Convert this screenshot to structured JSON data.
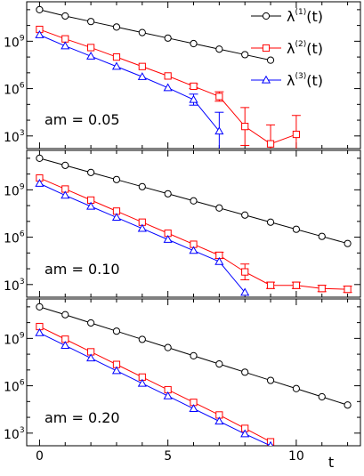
{
  "colors": {
    "series1": "#000000",
    "series2": "#ff0000",
    "series3": "#0000ff"
  },
  "legend": {
    "placement": "top-right",
    "entries": [
      {
        "symbol": "circle",
        "base": "λ",
        "sup": "(1)",
        "tail": "(t)",
        "color": "#000000"
      },
      {
        "symbol": "square",
        "base": "λ",
        "sup": "(2)",
        "tail": "(t)",
        "color": "#ff0000"
      },
      {
        "symbol": "triangle",
        "base": "λ",
        "sup": "(3)",
        "tail": "(t)",
        "color": "#0000ff"
      }
    ]
  },
  "chart_data": [
    {
      "type": "line",
      "label": "am = 0.05",
      "xlim": [
        -0.5,
        12.5
      ],
      "ylim_log10": [
        2.2,
        11.5
      ],
      "yscale": "log",
      "ytick_labels": [
        {
          "base": "10",
          "exp": "3",
          "log": 3
        },
        {
          "base": "10",
          "exp": "6",
          "log": 6
        },
        {
          "base": "10",
          "exp": "9",
          "log": 9
        }
      ],
      "series": [
        {
          "marker": "circle",
          "color": "#000000",
          "x": [
            0,
            1,
            2,
            3,
            4,
            5,
            6,
            7,
            8,
            9
          ],
          "log10y": [
            11.0,
            10.6,
            10.25,
            9.9,
            9.55,
            9.2,
            8.85,
            8.5,
            8.15,
            7.8
          ]
        },
        {
          "marker": "square",
          "color": "#ff0000",
          "x": [
            0,
            1,
            2,
            3,
            4,
            5,
            6,
            7,
            8,
            9,
            10
          ],
          "log10y": [
            9.75,
            9.15,
            8.6,
            8.0,
            7.4,
            6.8,
            6.15,
            5.5,
            3.6,
            2.5,
            3.1
          ],
          "err": [
            0,
            0,
            0,
            0,
            0,
            0,
            0.15,
            0.3,
            1.2,
            1.2,
            1.2
          ]
        },
        {
          "marker": "triangle",
          "color": "#0000ff",
          "x": [
            0,
            1,
            2,
            3,
            4,
            5,
            6,
            7
          ],
          "log10y": [
            9.4,
            8.7,
            8.05,
            7.4,
            6.75,
            6.05,
            5.3,
            3.3
          ],
          "err": [
            0,
            0,
            0,
            0,
            0,
            0,
            0.35,
            1.2
          ]
        }
      ]
    },
    {
      "type": "line",
      "label": "am = 0.10",
      "xlim": [
        -0.5,
        12.5
      ],
      "ylim_log10": [
        2.2,
        11.5
      ],
      "yscale": "log",
      "ytick_labels": [
        {
          "base": "10",
          "exp": "3",
          "log": 3
        },
        {
          "base": "10",
          "exp": "6",
          "log": 6
        },
        {
          "base": "10",
          "exp": "9",
          "log": 9
        }
      ],
      "series": [
        {
          "marker": "circle",
          "color": "#000000",
          "x": [
            0,
            1,
            2,
            3,
            4,
            5,
            6,
            7,
            8,
            9,
            10,
            11,
            12
          ],
          "log10y": [
            11.0,
            10.55,
            10.1,
            9.65,
            9.2,
            8.75,
            8.3,
            7.85,
            7.4,
            6.95,
            6.5,
            6.05,
            5.6
          ]
        },
        {
          "marker": "square",
          "color": "#ff0000",
          "x": [
            0,
            1,
            2,
            3,
            4,
            5,
            6,
            7,
            8,
            9,
            10,
            11,
            12
          ],
          "log10y": [
            9.75,
            9.05,
            8.35,
            7.65,
            6.95,
            6.25,
            5.55,
            4.85,
            3.8,
            2.95,
            2.95,
            2.75,
            2.7
          ],
          "err": [
            0,
            0,
            0,
            0,
            0,
            0,
            0,
            0.2,
            0.5,
            0.2,
            0.2,
            0.2,
            0.2
          ]
        },
        {
          "marker": "triangle",
          "color": "#0000ff",
          "x": [
            0,
            1,
            2,
            3,
            4,
            5,
            6,
            7,
            8
          ],
          "log10y": [
            9.4,
            8.65,
            7.95,
            7.25,
            6.55,
            5.85,
            5.15,
            4.45,
            2.5
          ]
        }
      ]
    },
    {
      "type": "line",
      "label": "am = 0.20",
      "xlim": [
        -0.5,
        12.5
      ],
      "ylim_log10": [
        2.2,
        11.5
      ],
      "yscale": "log",
      "ytick_labels": [
        {
          "base": "10",
          "exp": "3",
          "log": 3
        },
        {
          "base": "10",
          "exp": "6",
          "log": 6
        },
        {
          "base": "10",
          "exp": "9",
          "log": 9
        }
      ],
      "xtick_labels": [
        "0",
        "5",
        "10"
      ],
      "xticks": [
        0,
        5,
        10
      ],
      "xlabel": "t",
      "series": [
        {
          "marker": "circle",
          "color": "#000000",
          "x": [
            0,
            1,
            2,
            3,
            4,
            5,
            6,
            7,
            8,
            9,
            10,
            11,
            12
          ],
          "log10y": [
            11.0,
            10.5,
            9.98,
            9.46,
            8.94,
            8.42,
            7.9,
            7.38,
            6.86,
            6.34,
            5.82,
            5.3,
            4.78
          ]
        },
        {
          "marker": "square",
          "color": "#ff0000",
          "x": [
            0,
            1,
            2,
            3,
            4,
            5,
            6,
            7,
            8,
            9
          ],
          "log10y": [
            9.75,
            8.95,
            8.15,
            7.35,
            6.55,
            5.75,
            4.95,
            4.15,
            3.3,
            2.45
          ]
        },
        {
          "marker": "triangle",
          "color": "#0000ff",
          "x": [
            0,
            1,
            2,
            3,
            4,
            5,
            6,
            7,
            8,
            9
          ],
          "log10y": [
            9.35,
            8.55,
            7.75,
            6.95,
            6.15,
            5.35,
            4.55,
            3.75,
            2.95,
            2.2
          ]
        }
      ]
    }
  ]
}
